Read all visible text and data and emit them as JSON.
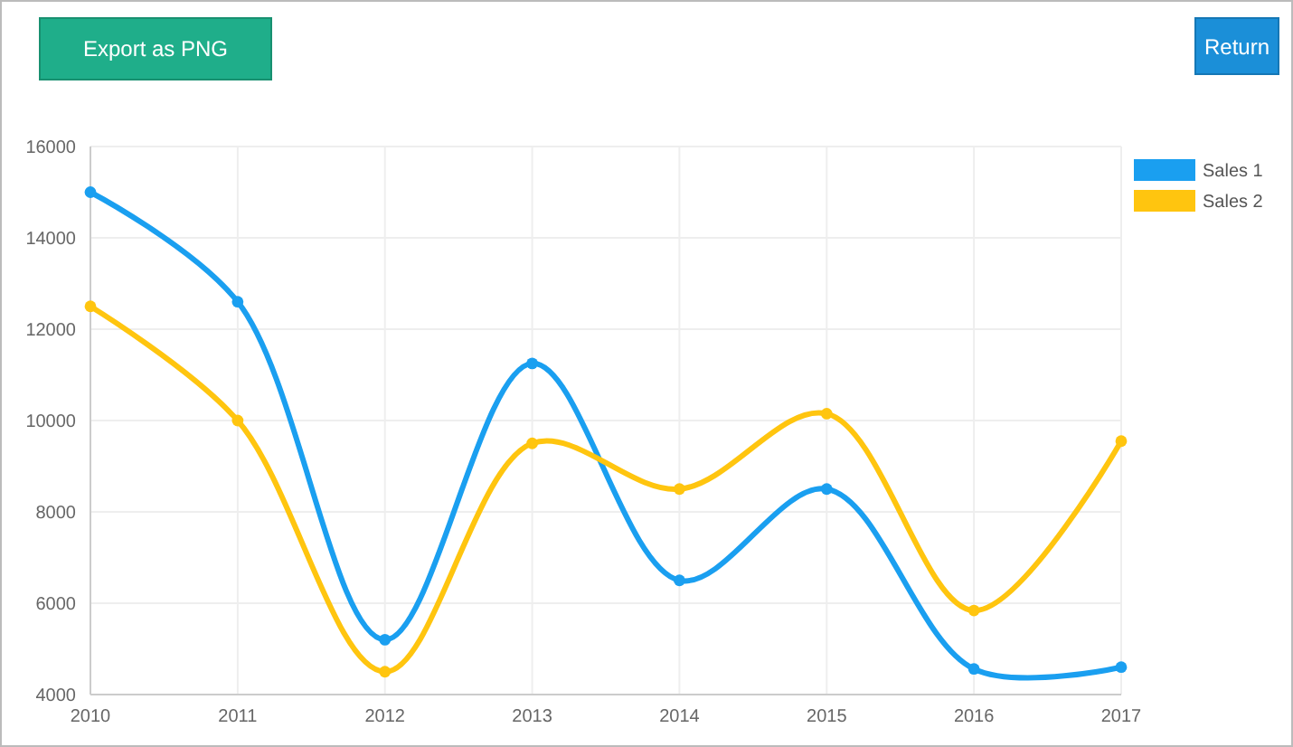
{
  "chart_data": {
    "type": "line",
    "categories": [
      "2010",
      "2011",
      "2012",
      "2013",
      "2014",
      "2015",
      "2016",
      "2017"
    ],
    "series": [
      {
        "name": "Sales 1",
        "color": "#1a9ff0",
        "values": [
          15000,
          12600,
          5200,
          11250,
          6500,
          8500,
          4560,
          4600
        ]
      },
      {
        "name": "Sales 2",
        "color": "#ffc50f",
        "values": [
          12500,
          10000,
          4500,
          9500,
          8500,
          10150,
          5840,
          9550
        ]
      }
    ],
    "ylim": [
      4000,
      16000
    ],
    "yticks": [
      4000,
      6000,
      8000,
      10000,
      12000,
      14000,
      16000
    ],
    "grid": true,
    "legend": "top right",
    "marker": "circle",
    "line_style": "solid",
    "annotations": [
      "Export as PNG",
      "Return"
    ]
  }
}
